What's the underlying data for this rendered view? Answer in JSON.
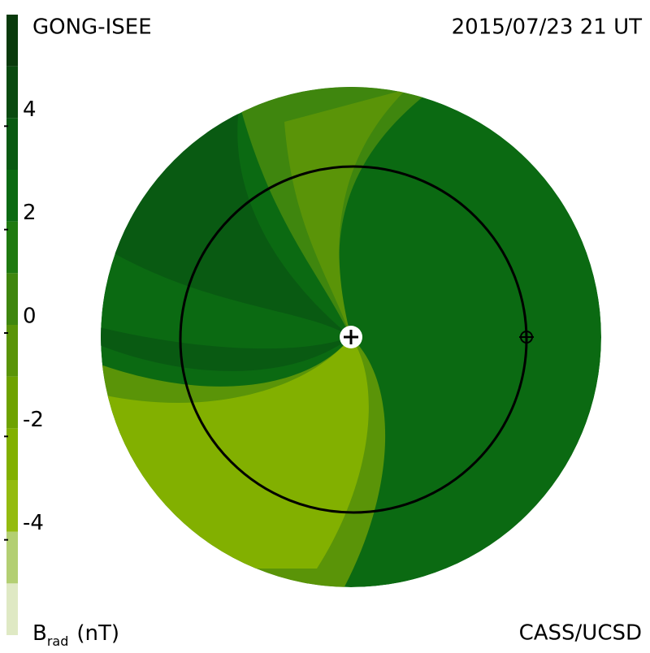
{
  "header": {
    "source": "GONG-ISEE",
    "timestamp": "2015/07/23 21 UT",
    "credit": "CASS/UCSD"
  },
  "colorbar": {
    "label_symbol": "B",
    "label_subscript": "rad",
    "label_unit": "(nT)",
    "ylim": [
      -6,
      6
    ],
    "levels": [
      -6,
      -5,
      -4,
      -3,
      -2,
      -1,
      0,
      1,
      2,
      3,
      4,
      5,
      6
    ],
    "colors": [
      "#dfe9c4",
      "#b3cf72",
      "#94bb10",
      "#82b000",
      "#6ea200",
      "#5a9408",
      "#3f860e",
      "#1f7a10",
      "#0b6a12",
      "#095a12",
      "#0a4a10",
      "#093a0c"
    ],
    "ticks": [
      -4,
      -2,
      0,
      2,
      4
    ]
  }
}
